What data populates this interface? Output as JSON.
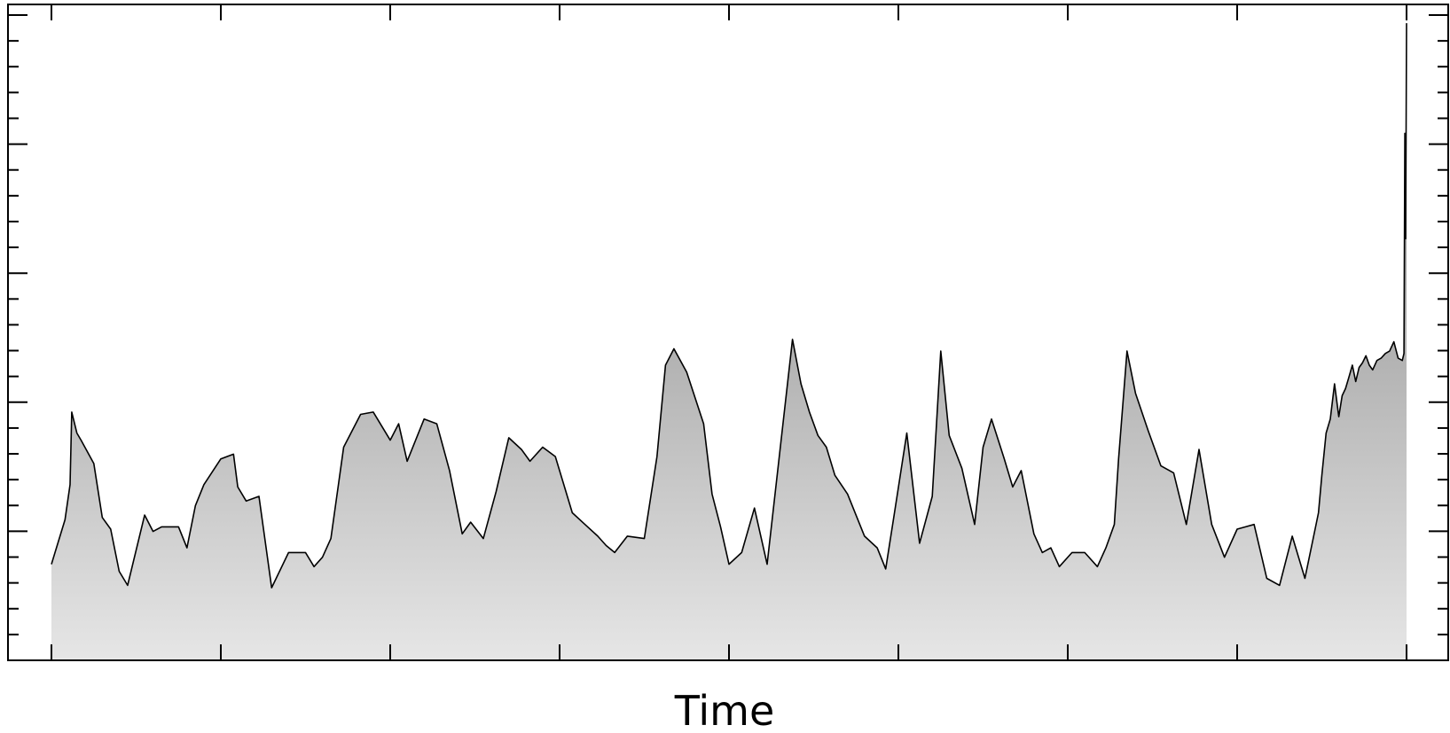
{
  "chart_data": {
    "type": "area",
    "title": "",
    "xlabel": "Time",
    "ylabel": "",
    "tick_labels_shown": false,
    "x_major_ticks": 9,
    "y_major_ticks": 6,
    "y_minor_per_major": 5,
    "xlim": [
      0,
      1600
    ],
    "ylim": [
      0,
      28
    ],
    "fill_gradient": [
      "#7a7a7a",
      "#e6e6e6"
    ],
    "line_color": "#000000",
    "grid": false,
    "legend": "none",
    "x": [
      0,
      16,
      22,
      24,
      30,
      35,
      50,
      60,
      70,
      80,
      90,
      110,
      120,
      130,
      150,
      160,
      170,
      180,
      200,
      215,
      220,
      230,
      245,
      260,
      280,
      300,
      310,
      320,
      330,
      345,
      365,
      380,
      400,
      410,
      420,
      440,
      455,
      470,
      485,
      495,
      510,
      525,
      540,
      555,
      565,
      580,
      595,
      615,
      630,
      645,
      655,
      665,
      680,
      700,
      715,
      725,
      735,
      750,
      770,
      780,
      790,
      800,
      815,
      830,
      845,
      860,
      875,
      885,
      895,
      905,
      915,
      925,
      940,
      960,
      975,
      985,
      995,
      1010,
      1025,
      1040,
      1050,
      1060,
      1075,
      1090,
      1100,
      1110,
      1125,
      1135,
      1145,
      1160,
      1170,
      1180,
      1190,
      1205,
      1220,
      1235,
      1245,
      1255,
      1260,
      1270,
      1280,
      1295,
      1310,
      1325,
      1340,
      1355,
      1370,
      1385,
      1400,
      1410,
      1420,
      1435,
      1450,
      1465,
      1480,
      1492,
      1496,
      1500,
      1505,
      1510,
      1515,
      1520,
      1524,
      1528,
      1532,
      1536,
      1540,
      1544,
      1548,
      1552,
      1556,
      1560,
      1565,
      1570,
      1575,
      1580,
      1585,
      1590,
      1595,
      1597,
      1598,
      1599,
      1600
    ],
    "y": [
      4.1,
      6.0,
      7.5,
      10.6,
      9.7,
      9.4,
      8.4,
      6.1,
      5.6,
      3.8,
      3.2,
      6.2,
      5.5,
      5.7,
      5.7,
      4.8,
      6.6,
      7.5,
      8.6,
      8.8,
      7.4,
      6.8,
      7.0,
      3.1,
      4.6,
      4.6,
      4.0,
      4.4,
      5.2,
      9.1,
      10.5,
      10.6,
      9.4,
      10.1,
      8.5,
      10.3,
      10.1,
      8.1,
      5.4,
      5.9,
      5.2,
      7.2,
      9.5,
      9.0,
      8.5,
      9.1,
      8.7,
      6.3,
      5.8,
      5.3,
      4.9,
      4.6,
      5.3,
      5.2,
      8.7,
      12.6,
      13.3,
      12.3,
      10.1,
      7.1,
      5.7,
      4.1,
      4.6,
      6.5,
      4.1,
      8.9,
      13.7,
      11.8,
      10.6,
      9.6,
      9.1,
      7.9,
      7.1,
      5.3,
      4.8,
      3.9,
      6.2,
      9.7,
      5.0,
      7.0,
      13.2,
      9.6,
      8.2,
      5.8,
      9.1,
      10.3,
      8.6,
      7.4,
      8.1,
      5.4,
      4.6,
      4.8,
      4.0,
      4.6,
      4.6,
      4.0,
      4.8,
      5.8,
      8.6,
      13.2,
      11.4,
      9.8,
      8.3,
      8.0,
      5.8,
      9.0,
      5.8,
      4.4,
      5.6,
      5.7,
      5.8,
      3.5,
      3.2,
      5.3,
      3.5,
      5.6,
      6.3,
      7.9,
      9.7,
      10.3,
      11.8,
      10.4,
      11.3,
      11.6,
      12.1,
      12.6,
      11.9,
      12.5,
      12.7,
      13.0,
      12.6,
      12.4,
      12.8,
      12.9,
      13.1,
      13.2,
      13.6,
      12.9,
      12.8,
      13.1,
      22.5,
      18.0,
      27.2
    ]
  }
}
